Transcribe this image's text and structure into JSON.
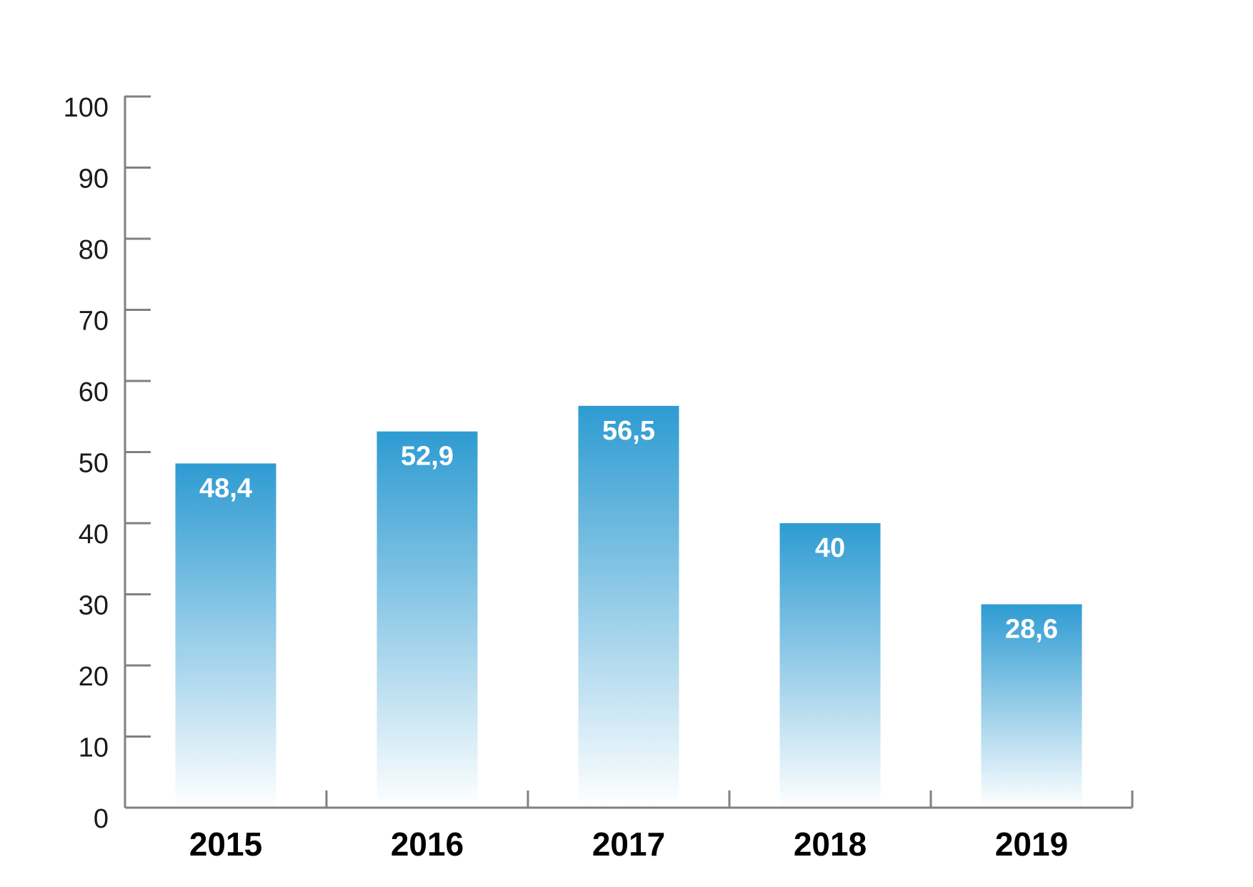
{
  "chart_data": {
    "type": "bar",
    "categories": [
      "2015",
      "2016",
      "2017",
      "2018",
      "2019"
    ],
    "values": [
      48.4,
      52.9,
      56.5,
      40,
      28.6
    ],
    "value_labels": [
      "48,4",
      "52,9",
      "56,5",
      "40",
      "28,6"
    ],
    "title": "",
    "xlabel": "",
    "ylabel": "",
    "ylim": [
      0,
      100
    ],
    "yticks": [
      0,
      10,
      20,
      30,
      40,
      50,
      60,
      70,
      80,
      90,
      100
    ],
    "ytick_labels": [
      "0",
      "10",
      "20",
      "30",
      "40",
      "50",
      "60",
      "70",
      "80",
      "90",
      "100"
    ],
    "grid": false,
    "legend": "none",
    "colors": {
      "bar_top": "#2E9BD2",
      "bar_bottom": "#FFFFFF",
      "axis": "#808080",
      "tick_text": "#1A1A1A",
      "category_text": "#000000",
      "value_text": "#FFFFFF"
    }
  }
}
